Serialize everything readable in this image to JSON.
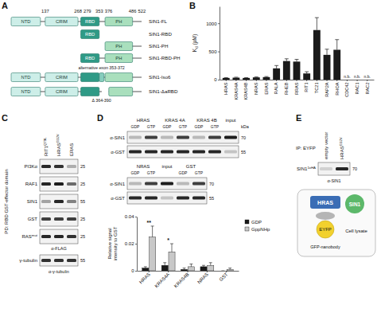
{
  "panel_labels": [
    "A",
    "B",
    "C",
    "D",
    "E"
  ],
  "domain_diagram": {
    "length": 522,
    "residue_marks": [
      137,
      268,
      279,
      353,
      376,
      486,
      522
    ],
    "domain_colors": {
      "NTD": "#cdeee8",
      "CRIM": "#cdeee8",
      "RBD": "#2f9a86",
      "exon": "#86cdbd",
      "PH": "#a9dfbd"
    },
    "constructs": [
      {
        "label": "SIN1-FL",
        "span": [
          [
            1,
            522
          ]
        ],
        "segments": [
          {
            "domain": "NTD",
            "start": 1,
            "end": 118,
            "text": "NTD"
          },
          {
            "domain": "CRIM",
            "start": 137,
            "end": 268,
            "text": "CRIM"
          },
          {
            "domain": "RBD",
            "start": 279,
            "end": 353,
            "text": "RBD"
          },
          {
            "domain": "PH",
            "start": 376,
            "end": 486,
            "text": "PH"
          }
        ]
      },
      {
        "label": "SIN1-RBD",
        "span": [
          [
            279,
            353
          ]
        ],
        "segments": [
          {
            "domain": "RBD",
            "start": 279,
            "end": 353,
            "text": "RBD"
          }
        ]
      },
      {
        "label": "SIN1-PH",
        "span": [
          [
            376,
            522
          ]
        ],
        "segments": [
          {
            "domain": "PH",
            "start": 376,
            "end": 486,
            "text": "PH"
          }
        ]
      },
      {
        "label": "SIN1-RBD-PH",
        "span": [
          [
            279,
            522
          ]
        ],
        "segments": [
          {
            "domain": "RBD",
            "start": 279,
            "end": 353,
            "text": "RBD"
          },
          {
            "domain": "PH",
            "start": 376,
            "end": 486,
            "text": "PH"
          }
        ]
      },
      {
        "label": "SIN1-Iso6",
        "span": [
          [
            1,
            522
          ]
        ],
        "note": "alternative exon 353-372",
        "segments": [
          {
            "domain": "NTD",
            "start": 1,
            "end": 118,
            "text": "NTD"
          },
          {
            "domain": "CRIM",
            "start": 137,
            "end": 268,
            "text": "CRIM"
          },
          {
            "domain": "RBD",
            "start": 279,
            "end": 353
          },
          {
            "domain": "exon",
            "start": 353,
            "end": 372
          },
          {
            "domain": "PH",
            "start": 376,
            "end": 486
          }
        ]
      },
      {
        "label": "SIN1-ΔaRBD",
        "span": [
          [
            1,
            363
          ],
          [
            391,
            522
          ]
        ],
        "note": "Δ 364-390",
        "segments": [
          {
            "domain": "NTD",
            "start": 1,
            "end": 118,
            "text": "NTD"
          },
          {
            "domain": "CRIM",
            "start": 137,
            "end": 268,
            "text": "CRIM"
          },
          {
            "domain": "RBD",
            "start": 279,
            "end": 353
          },
          {
            "domain": "PH",
            "start": 391,
            "end": 486
          }
        ]
      }
    ]
  },
  "chart_data": [
    {
      "type": "bar",
      "y_label": "Kd (µM)",
      "categories": [
        "HRAS",
        "KRAS4A",
        "KRAS4B",
        "NRAS",
        "ERAS",
        "RALA",
        "RHEB",
        "RRAS",
        "RIT1",
        "TC21",
        "RAP2A",
        "RHOA",
        "CDC42",
        "RAC1",
        "RAC2"
      ],
      "values": [
        30,
        35,
        30,
        40,
        45,
        200,
        330,
        320,
        110,
        880,
        440,
        530,
        null,
        null,
        null
      ],
      "errors": [
        5,
        8,
        5,
        8,
        10,
        50,
        40,
        40,
        30,
        220,
        100,
        180,
        null,
        null,
        null
      ],
      "color": "#1a1a1a",
      "ylim": [
        0,
        1300
      ],
      "yticks": [
        0,
        500,
        1000
      ],
      "annotations": [
        {
          "text": "n.b.",
          "x": "CDC42"
        },
        {
          "text": "n.b.",
          "x": "RAC1"
        },
        {
          "text": "n.b.",
          "x": "RAC2"
        }
      ]
    },
    {
      "type": "bar",
      "y_label": [
        "Relative signal",
        "intensity to GST"
      ],
      "categories": [
        "HRAS",
        "KRAS4A",
        "KRAS4B",
        "NRAS",
        "GST"
      ],
      "series": [
        {
          "name": "GDP",
          "color": "#1a1a1a",
          "values": [
            0.002,
            0.004,
            0.001,
            0.003,
            0.0
          ],
          "errors": [
            0.001,
            0.002,
            0.001,
            0.001,
            0.0
          ]
        },
        {
          "name": "GppNHp",
          "color": "#c8c8c8",
          "values": [
            0.025,
            0.014,
            0.003,
            0.004,
            0.001
          ],
          "errors": [
            0.008,
            0.006,
            0.002,
            0.002,
            0.001
          ]
        }
      ],
      "ylim": [
        0,
        0.04
      ],
      "yticks": [
        0,
        0.02,
        0.04
      ],
      "legend": "upper right",
      "annotations": [
        {
          "text": "**",
          "x": "HRAS"
        },
        {
          "text": "*",
          "x": "KRAS4A"
        }
      ]
    }
  ],
  "blot_c": {
    "side_label": "PD: RBD GST-effector domain",
    "lanes": [
      {
        "text": "RIT1",
        "sup": "Q79L"
      },
      {
        "text": "HRAS",
        "sup": "G12V"
      },
      {
        "text": "ERAS"
      }
    ],
    "rows": [
      {
        "label": {
          "text": "PI3Kα"
        },
        "kda": 25
      },
      {
        "label": {
          "text": "RAF1"
        },
        "kda": 25
      },
      {
        "label": {
          "text": "SIN1"
        },
        "kda": 55
      },
      {
        "label": {
          "text": "GST"
        },
        "kda": 25
      },
      {
        "label": {
          "text": "RAS",
          "sup": "mut"
        },
        "kda": 25
      }
    ],
    "antibody": "α-FLAG",
    "loading": {
      "label": "γ-tubulin",
      "kda": 55,
      "antibody": "α-γ-tubulin"
    }
  },
  "blot_d": {
    "panels": [
      {
        "kda_unit": "kDa",
        "groups": [
          {
            "name": "HRAS",
            "lanes": [
              "GDP",
              "GTP"
            ]
          },
          {
            "name": "KRAS 4A",
            "lanes": [
              "GDP",
              "GTP"
            ]
          },
          {
            "name": "KRAS 4B",
            "lanes": [
              "GDP",
              "GTP"
            ]
          },
          {
            "name": "input",
            "lanes": [
              null
            ]
          }
        ],
        "rows": [
          {
            "label": "α-SIN1",
            "kda": 70
          },
          {
            "label": "α-GST",
            "kda": 55
          }
        ]
      },
      {
        "groups": [
          {
            "name": "NRAS",
            "lanes": [
              "GDP",
              "GTP"
            ]
          },
          {
            "name": "input",
            "lanes": [
              null
            ]
          },
          {
            "name": "GST",
            "lanes": [
              "GDP",
              "GTP"
            ]
          }
        ],
        "rows": [
          {
            "label": "α-SIN1",
            "kda": 70
          },
          {
            "label": "α-GST",
            "kda": 55
          }
        ]
      }
    ]
  },
  "blot_e": {
    "title": "IP: EYFP",
    "lanes": [
      {
        "text": "empty vector"
      },
      {
        "text": "HRAS",
        "sup": "G12V"
      }
    ],
    "band_label": {
      "text": "SIN1",
      "sup": "1xHA"
    },
    "kda": 70,
    "antibody": "α-SIN1"
  },
  "schematic_e": {
    "nodes": [
      {
        "text": "HRAS",
        "color": "#3a6db5"
      },
      {
        "text": "SIN1",
        "color": "#5cb86a"
      },
      {
        "text": "EYFP",
        "color": "#f2d12e"
      },
      {
        "text": "GFP-nanobody",
        "color": "#b5b5b5"
      }
    ],
    "context": "Cell lysate"
  }
}
